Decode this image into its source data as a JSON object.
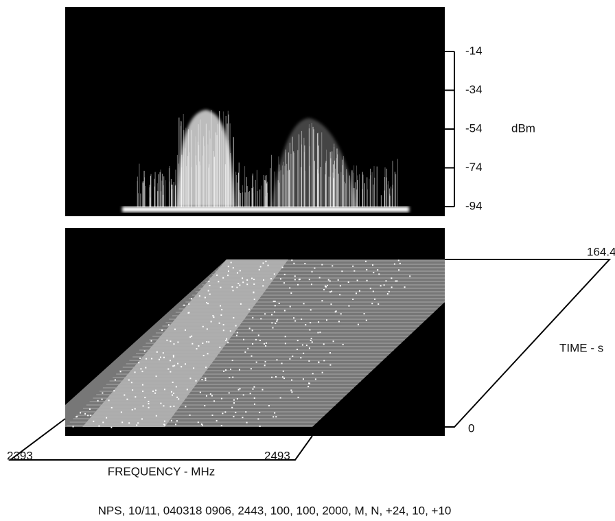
{
  "chart_data": {
    "type": "waterfall",
    "ylabel": "dBm",
    "ylim": [
      -94,
      -14
    ],
    "yticks": [
      -14,
      -34,
      -54,
      -74,
      -94
    ],
    "xlabel": "FREQUENCY - MHz",
    "xlim": [
      2393,
      2493
    ],
    "xticks": [
      2393,
      2493
    ],
    "zlabel": "TIME - s",
    "zlim": [
      0,
      164.4
    ],
    "zticks": [
      0,
      164.4
    ],
    "caption": "NPS, 10/11, 040318 0906, 2443, 100, 100, 2000, M, N, +24, 10, +10"
  }
}
